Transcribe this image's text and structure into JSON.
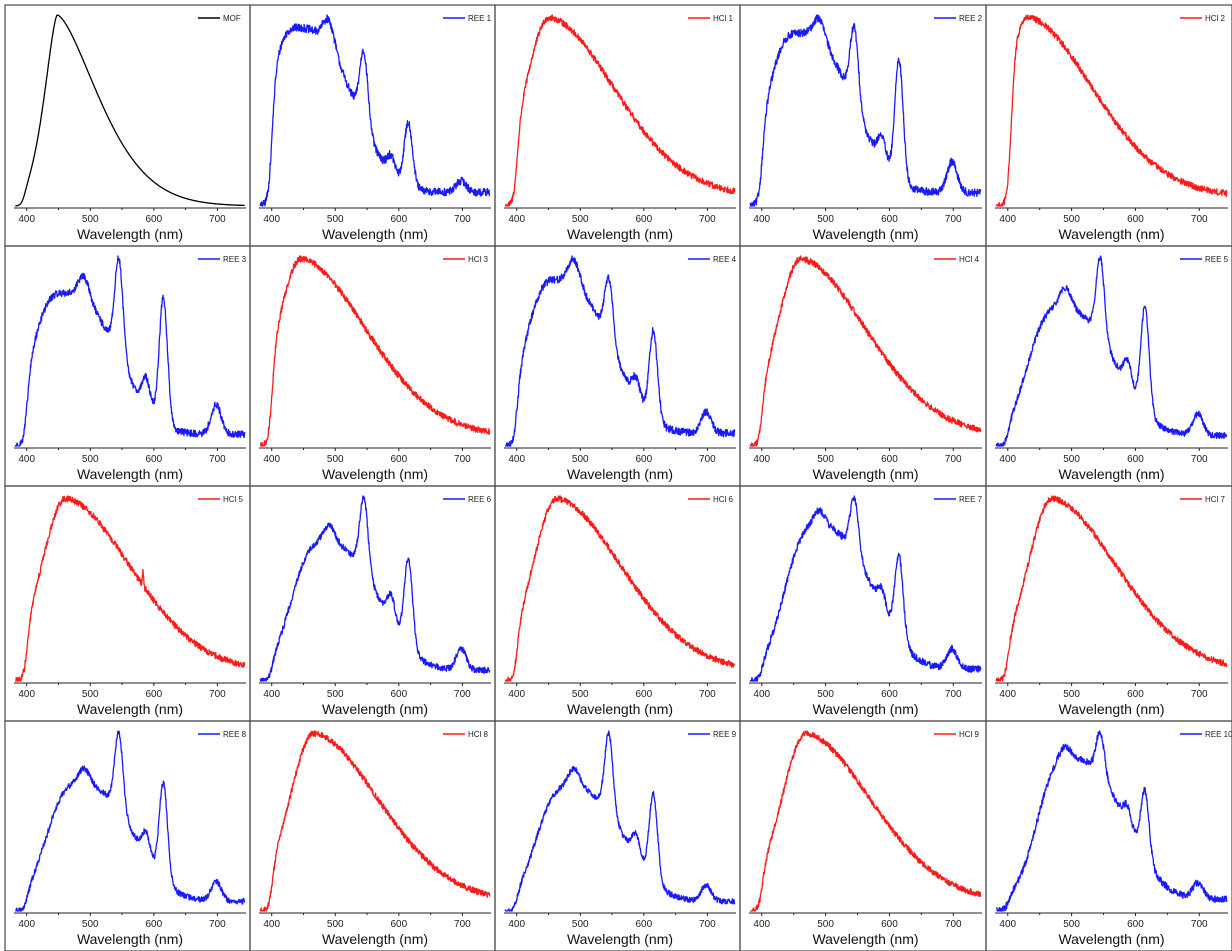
{
  "colors": {
    "mof": "#000000",
    "ree": "#1a1aff",
    "hcl": "#ff1a1a"
  },
  "chart_data": {
    "type": "line",
    "layout": "4x5 grid of emission spectra",
    "xlabel": "Wavelength (nm)",
    "ylabel": "",
    "xlim": [
      380,
      745
    ],
    "xticks": [
      400,
      500,
      600,
      700
    ],
    "y_axis_shown": false,
    "legend_position": "top-right",
    "panels": [
      {
        "name": "MOF",
        "kind": "mof",
        "onset": 395,
        "peak": 448,
        "lines": []
      },
      {
        "name": "REE 1",
        "kind": "ree",
        "onset": 400,
        "peak": 440,
        "lines": [
          [
            490,
            0.12
          ],
          [
            545,
            0.32
          ],
          [
            588,
            0.08
          ],
          [
            615,
            0.28
          ],
          [
            698,
            0.05
          ]
        ]
      },
      {
        "name": "HCl 1",
        "kind": "hcl",
        "onset": 400,
        "peak": 450,
        "lines": []
      },
      {
        "name": "REE 2",
        "kind": "ree",
        "onset": 400,
        "peak": 455,
        "lines": [
          [
            490,
            0.1
          ],
          [
            545,
            0.35
          ],
          [
            588,
            0.12
          ],
          [
            615,
            0.55
          ],
          [
            698,
            0.14
          ]
        ]
      },
      {
        "name": "HCl 2",
        "kind": "hcl",
        "onset": 405,
        "peak": 430,
        "lines": []
      },
      {
        "name": "REE 3",
        "kind": "ree",
        "onset": 400,
        "peak": 455,
        "lines": [
          [
            490,
            0.12
          ],
          [
            545,
            0.5
          ],
          [
            588,
            0.15
          ],
          [
            615,
            0.65
          ],
          [
            698,
            0.15
          ]
        ]
      },
      {
        "name": "HCl 3",
        "kind": "hcl",
        "onset": 400,
        "peak": 445,
        "lines": []
      },
      {
        "name": "REE 4",
        "kind": "ree",
        "onset": 400,
        "peak": 460,
        "lines": [
          [
            490,
            0.12
          ],
          [
            545,
            0.3
          ],
          [
            588,
            0.1
          ],
          [
            615,
            0.42
          ],
          [
            698,
            0.1
          ]
        ]
      },
      {
        "name": "HCl 4",
        "kind": "hcl",
        "onset": 400,
        "peak": 460,
        "lines": []
      },
      {
        "name": "REE 5",
        "kind": "ree",
        "onset": 400,
        "peak": 480,
        "lines": [
          [
            490,
            0.12
          ],
          [
            545,
            0.45
          ],
          [
            588,
            0.15
          ],
          [
            615,
            0.6
          ],
          [
            698,
            0.12
          ]
        ]
      },
      {
        "name": "HCl 5",
        "kind": "hcl",
        "onset": 400,
        "peak": 460,
        "lines": [
          [
            583,
            0.08
          ]
        ]
      },
      {
        "name": "REE 6",
        "kind": "ree",
        "onset": 400,
        "peak": 480,
        "lines": [
          [
            490,
            0.1
          ],
          [
            545,
            0.42
          ],
          [
            588,
            0.15
          ],
          [
            615,
            0.5
          ],
          [
            698,
            0.12
          ]
        ]
      },
      {
        "name": "HCl 6",
        "kind": "hcl",
        "onset": 400,
        "peak": 462,
        "lines": []
      },
      {
        "name": "REE 7",
        "kind": "ree",
        "onset": 400,
        "peak": 485,
        "lines": [
          [
            490,
            0.08
          ],
          [
            545,
            0.28
          ],
          [
            588,
            0.1
          ],
          [
            615,
            0.42
          ],
          [
            698,
            0.1
          ]
        ]
      },
      {
        "name": "HCl 7",
        "kind": "hcl",
        "onset": 400,
        "peak": 468,
        "lines": []
      },
      {
        "name": "REE 8",
        "kind": "ree",
        "onset": 400,
        "peak": 480,
        "lines": [
          [
            490,
            0.1
          ],
          [
            545,
            0.48
          ],
          [
            588,
            0.15
          ],
          [
            615,
            0.6
          ],
          [
            698,
            0.12
          ]
        ]
      },
      {
        "name": "HCl 8",
        "kind": "hcl",
        "onset": 400,
        "peak": 465,
        "lines": []
      },
      {
        "name": "REE 9",
        "kind": "ree",
        "onset": 400,
        "peak": 480,
        "lines": [
          [
            490,
            0.12
          ],
          [
            545,
            0.5
          ],
          [
            588,
            0.15
          ],
          [
            615,
            0.55
          ],
          [
            698,
            0.1
          ]
        ]
      },
      {
        "name": "HCl 9",
        "kind": "hcl",
        "onset": 400,
        "peak": 468,
        "lines": []
      },
      {
        "name": "REE 10",
        "kind": "ree",
        "onset": 400,
        "peak": 495,
        "lines": [
          [
            490,
            0.06
          ],
          [
            545,
            0.22
          ],
          [
            588,
            0.1
          ],
          [
            615,
            0.35
          ],
          [
            698,
            0.08
          ]
        ]
      }
    ]
  }
}
